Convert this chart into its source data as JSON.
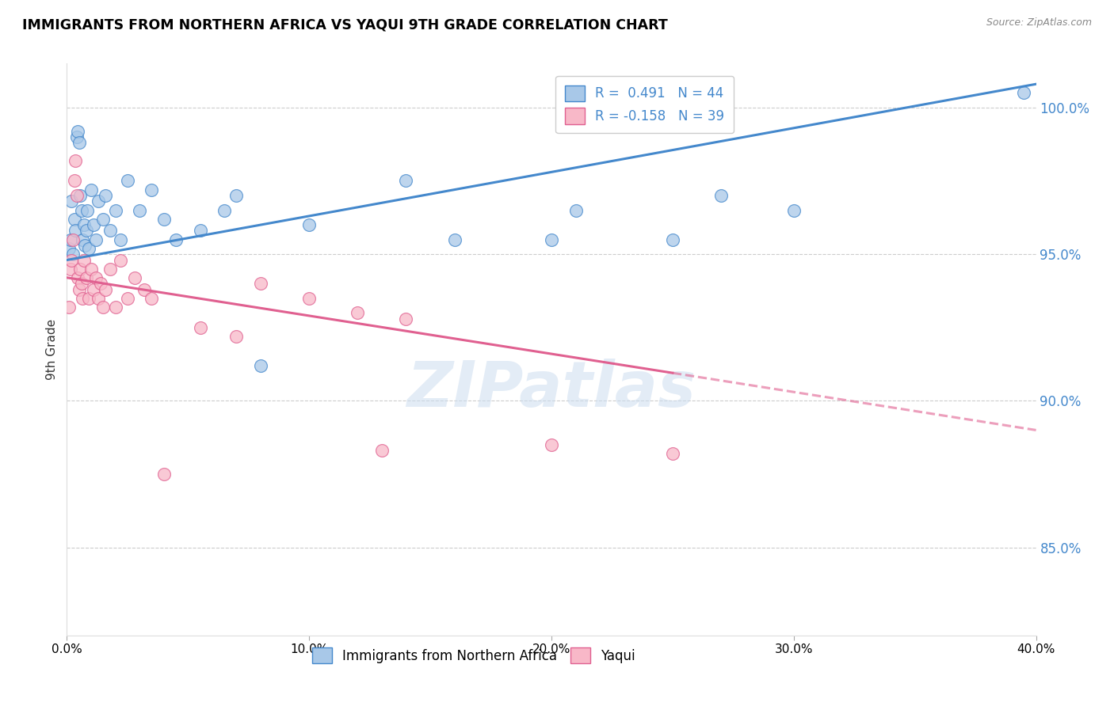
{
  "title": "IMMIGRANTS FROM NORTHERN AFRICA VS YAQUI 9TH GRADE CORRELATION CHART",
  "source": "Source: ZipAtlas.com",
  "ylabel": "9th Grade",
  "xmin": 0.0,
  "xmax": 40.0,
  "ymin": 82.0,
  "ymax": 101.5,
  "yticks": [
    85.0,
    90.0,
    95.0,
    100.0
  ],
  "xticks": [
    0.0,
    10.0,
    20.0,
    30.0,
    40.0
  ],
  "legend_r1_label": "R =  0.491   N = 44",
  "legend_r2_label": "R = -0.158   N = 39",
  "blue_color": "#a8c8e8",
  "blue_edge_color": "#4488cc",
  "pink_color": "#f8b8c8",
  "pink_edge_color": "#e06090",
  "blue_line_color": "#4488cc",
  "pink_line_color": "#e06090",
  "pink_solid_end": 25.0,
  "watermark_text": "ZIPatlas",
  "blue_trend_x0": 0.0,
  "blue_trend_y0": 94.8,
  "blue_trend_x1": 40.0,
  "blue_trend_y1": 100.8,
  "pink_trend_x0": 0.0,
  "pink_trend_y0": 94.2,
  "pink_trend_x1": 40.0,
  "pink_trend_y1": 89.0,
  "blue_scatter_x": [
    0.1,
    0.15,
    0.2,
    0.25,
    0.3,
    0.35,
    0.4,
    0.45,
    0.5,
    0.55,
    0.6,
    0.65,
    0.7,
    0.75,
    0.8,
    0.85,
    0.9,
    1.0,
    1.1,
    1.2,
    1.3,
    1.5,
    1.6,
    1.8,
    2.0,
    2.2,
    2.5,
    3.0,
    3.5,
    4.0,
    4.5,
    5.5,
    6.5,
    7.0,
    8.0,
    10.0,
    14.0,
    16.0,
    20.0,
    21.0,
    25.0,
    27.0,
    30.0,
    39.5
  ],
  "blue_scatter_y": [
    95.2,
    95.5,
    96.8,
    95.0,
    96.2,
    95.8,
    99.0,
    99.2,
    98.8,
    97.0,
    96.5,
    95.5,
    96.0,
    95.3,
    95.8,
    96.5,
    95.2,
    97.2,
    96.0,
    95.5,
    96.8,
    96.2,
    97.0,
    95.8,
    96.5,
    95.5,
    97.5,
    96.5,
    97.2,
    96.2,
    95.5,
    95.8,
    96.5,
    97.0,
    91.2,
    96.0,
    97.5,
    95.5,
    95.5,
    96.5,
    95.5,
    97.0,
    96.5,
    100.5
  ],
  "pink_scatter_x": [
    0.1,
    0.15,
    0.2,
    0.25,
    0.3,
    0.35,
    0.4,
    0.45,
    0.5,
    0.55,
    0.6,
    0.65,
    0.7,
    0.8,
    0.9,
    1.0,
    1.1,
    1.2,
    1.3,
    1.4,
    1.5,
    1.6,
    1.8,
    2.0,
    2.2,
    2.5,
    2.8,
    3.2,
    3.5,
    4.0,
    5.5,
    7.0,
    8.0,
    10.0,
    12.0,
    13.0,
    14.0,
    20.0,
    25.0
  ],
  "pink_scatter_y": [
    93.2,
    94.5,
    94.8,
    95.5,
    97.5,
    98.2,
    97.0,
    94.2,
    93.8,
    94.5,
    94.0,
    93.5,
    94.8,
    94.2,
    93.5,
    94.5,
    93.8,
    94.2,
    93.5,
    94.0,
    93.2,
    93.8,
    94.5,
    93.2,
    94.8,
    93.5,
    94.2,
    93.8,
    93.5,
    87.5,
    92.5,
    92.2,
    94.0,
    93.5,
    93.0,
    88.3,
    92.8,
    88.5,
    88.2
  ]
}
